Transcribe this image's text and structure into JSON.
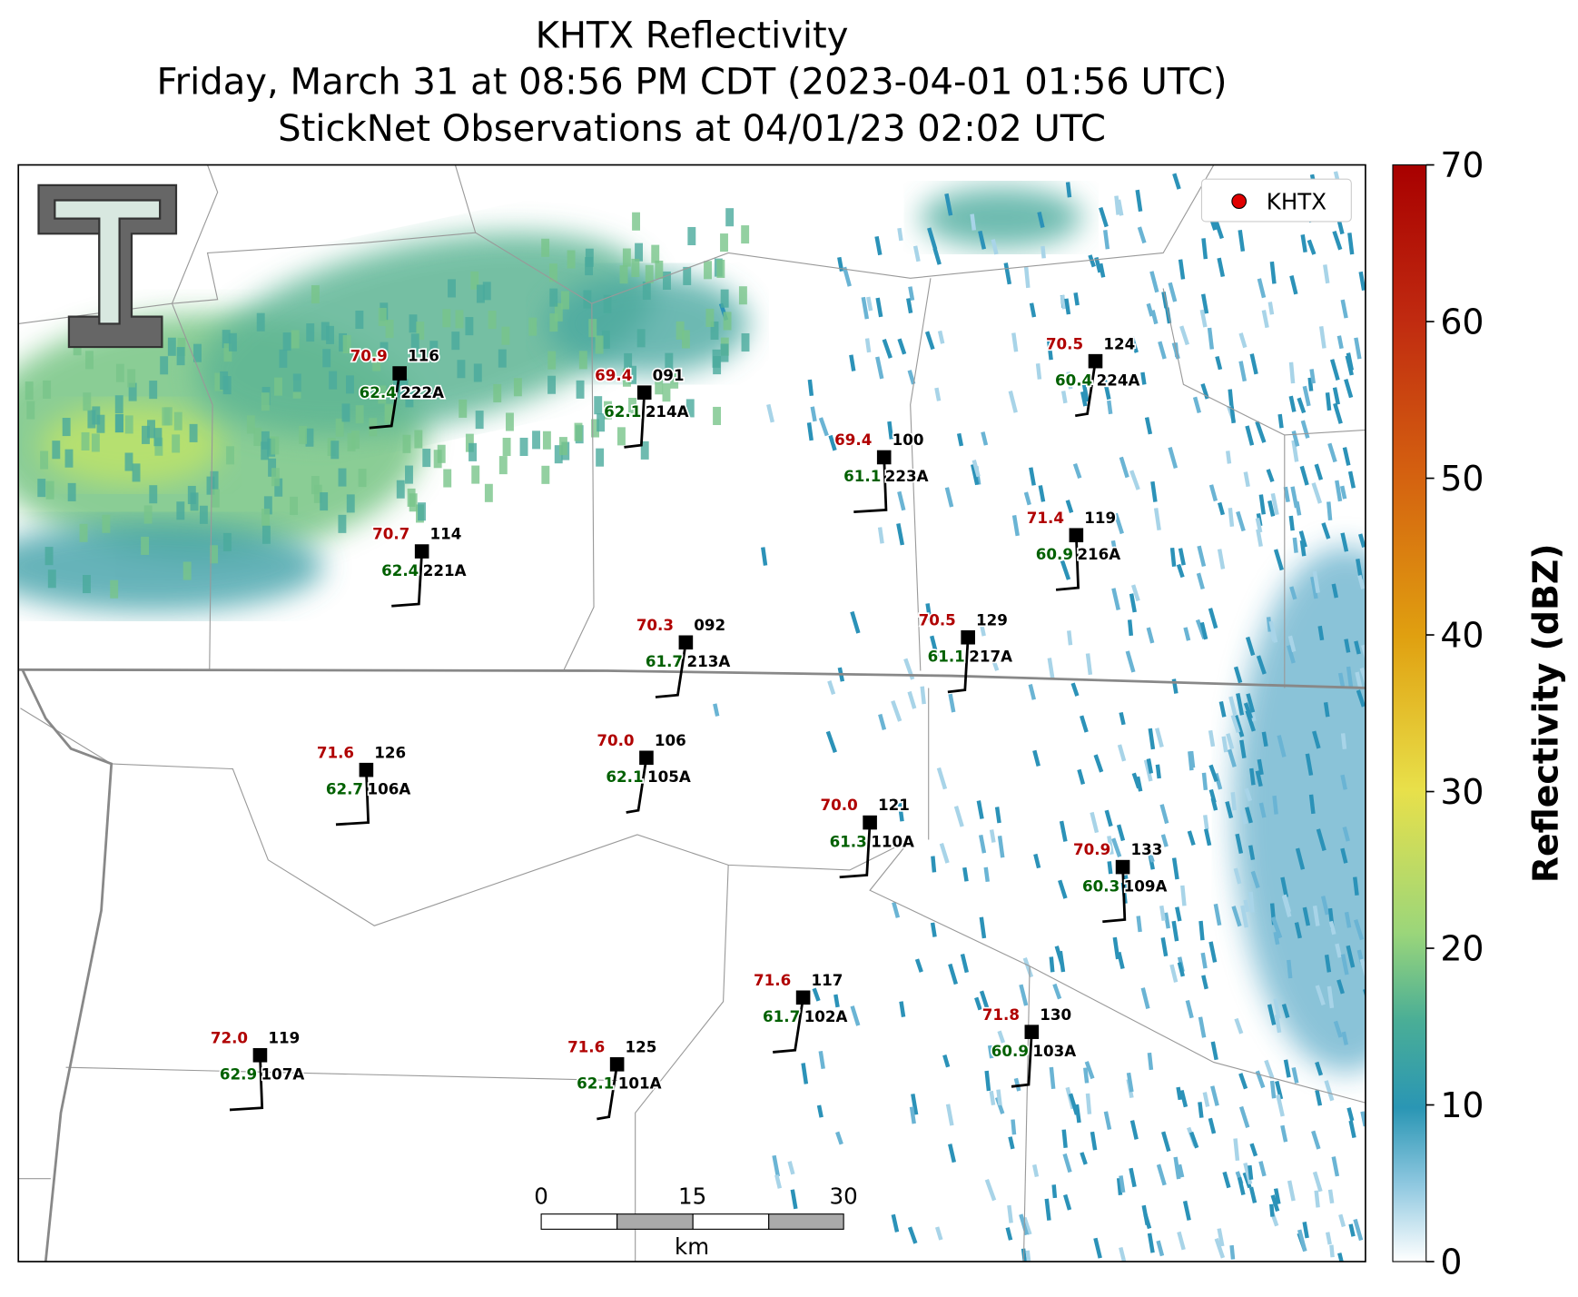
{
  "header": {
    "title_lines": [
      "KHTX Reflectivity",
      "Friday, March 31 at 08:56 PM CDT (2023-04-01 01:56 UTC)",
      "StickNet Observations at 04/01/23 02:02 UTC"
    ]
  },
  "legend": {
    "label": "KHTX"
  },
  "stations": [
    {
      "id": "222A",
      "temperature": "70.9",
      "dewpoint": "62.4",
      "value": "116"
    },
    {
      "id": "214A",
      "temperature": "69.4",
      "dewpoint": "62.1",
      "value": "091"
    },
    {
      "id": "223A",
      "temperature": "69.4",
      "dewpoint": "61.1",
      "value": "100"
    },
    {
      "id": "224A",
      "temperature": "70.5",
      "dewpoint": "60.4",
      "value": "124"
    },
    {
      "id": "221A",
      "temperature": "70.7",
      "dewpoint": "62.4",
      "value": "114"
    },
    {
      "id": "216A",
      "temperature": "71.4",
      "dewpoint": "60.9",
      "value": "119"
    },
    {
      "id": "213A",
      "temperature": "70.3",
      "dewpoint": "61.7",
      "value": "092"
    },
    {
      "id": "217A",
      "temperature": "70.5",
      "dewpoint": "61.1",
      "value": "129"
    },
    {
      "id": "106A",
      "temperature": "71.6",
      "dewpoint": "62.7",
      "value": "126"
    },
    {
      "id": "105A",
      "temperature": "70.0",
      "dewpoint": "62.1",
      "value": "106"
    },
    {
      "id": "110A",
      "temperature": "70.0",
      "dewpoint": "61.3",
      "value": "121"
    },
    {
      "id": "109A",
      "temperature": "70.9",
      "dewpoint": "60.3",
      "value": "133"
    },
    {
      "id": "102A",
      "temperature": "71.6",
      "dewpoint": "61.7",
      "value": "117"
    },
    {
      "id": "103A",
      "temperature": "71.8",
      "dewpoint": "60.9",
      "value": "130"
    },
    {
      "id": "107A",
      "temperature": "72.0",
      "dewpoint": "62.9",
      "value": "119"
    },
    {
      "id": "101A",
      "temperature": "71.6",
      "dewpoint": "62.1",
      "value": "125"
    }
  ],
  "scale_bar": {
    "ticks": [
      0,
      15,
      30
    ],
    "unit": "km"
  },
  "colorbar": {
    "label": "Reflectivity (dBZ)",
    "lim": [
      0,
      70
    ],
    "ticks": [
      0,
      10,
      20,
      30,
      40,
      50,
      60,
      70
    ]
  }
}
